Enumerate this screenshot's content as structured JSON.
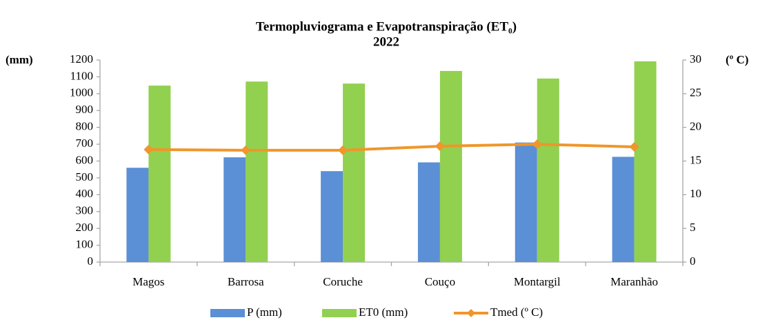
{
  "chart_data": {
    "type": "bar-line",
    "title": "Termopluviograma e Evapotranspiração (ET₀)",
    "subtitle": "2022",
    "y_label": "(mm)",
    "y2_label": "(º C)",
    "categories": [
      "Magos",
      "Barrosa",
      "Coruche",
      "Couço",
      "Montargil",
      "Maranhão"
    ],
    "series": [
      {
        "name": "P (mm)",
        "type": "bar",
        "color": "#5b8fd6",
        "values": [
          560,
          622,
          540,
          592,
          710,
          625
        ]
      },
      {
        "name": "ET0 (mm)",
        "type": "bar",
        "color": "#92d050",
        "values": [
          1048,
          1072,
          1060,
          1135,
          1090,
          1192
        ]
      },
      {
        "name": "Tmed (º C)",
        "type": "line",
        "axis": "y2",
        "color": "#f0962a",
        "values": [
          16.7,
          16.6,
          16.6,
          17.2,
          17.5,
          17.1
        ]
      }
    ],
    "ylim": [
      0,
      1200
    ],
    "yticks": [
      0,
      100,
      200,
      300,
      400,
      500,
      600,
      700,
      800,
      900,
      1000,
      1100,
      1200
    ],
    "y2lim": [
      0,
      30
    ],
    "y2ticks": [
      0,
      5,
      10,
      15,
      20,
      25,
      30
    ],
    "grid": false,
    "legend": "bottom"
  }
}
